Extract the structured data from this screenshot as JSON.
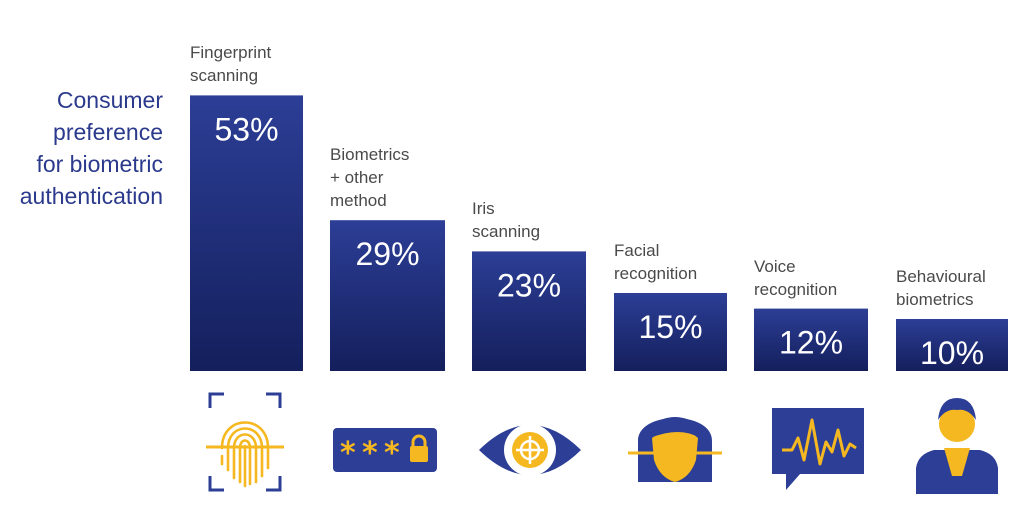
{
  "chart_data": {
    "type": "bar",
    "title_lines": [
      "Consumer",
      "preference",
      "for biometric",
      "authentication"
    ],
    "categories": [
      {
        "lines": [
          "Fingerprint",
          "scanning"
        ],
        "value_label": "53%",
        "icon": "fingerprint-icon"
      },
      {
        "lines": [
          "Biometrics",
          "+ other",
          "method"
        ],
        "value_label": "29%",
        "icon": "password-lock-icon"
      },
      {
        "lines": [
          "Iris",
          "scanning"
        ],
        "value_label": "23%",
        "icon": "eye-icon"
      },
      {
        "lines": [
          "Facial",
          "recognition"
        ],
        "value_label": "15%",
        "icon": "face-scan-icon"
      },
      {
        "lines": [
          "Voice",
          "recognition"
        ],
        "value_label": "12%",
        "icon": "voice-waveform-icon"
      },
      {
        "lines": [
          "Behavioural",
          "biometrics"
        ],
        "value_label": "10%",
        "icon": "person-icon"
      }
    ],
    "values": [
      53,
      29,
      23,
      15,
      12,
      10
    ],
    "unit": "%",
    "ylim": [
      0,
      55
    ],
    "grid": false,
    "legend": "none",
    "colors": {
      "bar_top": "#2c3e96",
      "bar_bottom": "#141f5c",
      "accent": "#f5b820",
      "title": "#2b3a8c"
    }
  }
}
